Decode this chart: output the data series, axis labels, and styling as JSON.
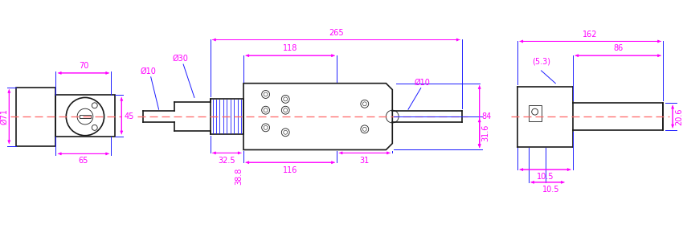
{
  "bg_color": "#ffffff",
  "line_color": "#1a1aff",
  "dim_color": "#ff00ff",
  "part_color": "#1a1a1a",
  "centerline_color": "#ff6666",
  "fig_width": 8.5,
  "fig_height": 3.0,
  "dpi": 100,
  "dims": {
    "left_view": {
      "width_label": "70",
      "height_label": "45",
      "bottom_label": "65",
      "diameter_label": "Ø71"
    },
    "center_view": {
      "top_label": "265",
      "upper_label": "118",
      "left_diam1": "Ø10",
      "left_diam2": "Ø30",
      "bottom1": "32.5",
      "bottom2": "38.8",
      "bottom3": "116",
      "bottom4": "31",
      "right_vert": "84",
      "right_diam": "Ø10",
      "vert_label": "31.6"
    },
    "right_view": {
      "top_label": "162",
      "upper2_label": "86",
      "paren_label": "(5.3)",
      "right_vert": "20.6",
      "bot1": "10.5",
      "bot2": "10.5"
    }
  }
}
